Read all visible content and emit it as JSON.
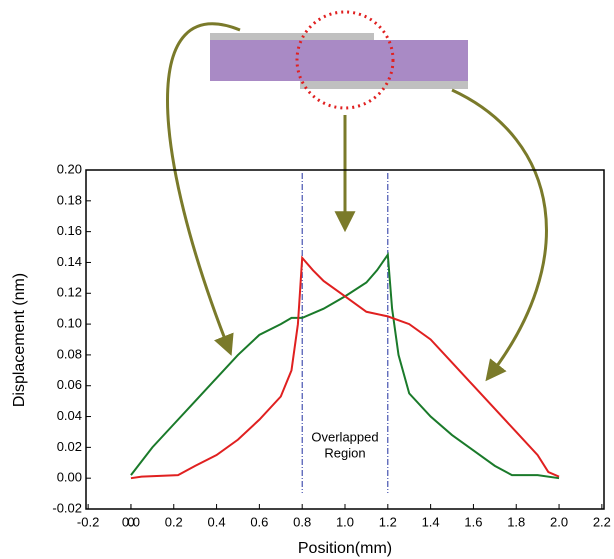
{
  "chart_data": {
    "type": "line",
    "xlabel": "Position(mm)",
    "ylabel": "Displacement (nm)",
    "annotation": [
      "Overlapped",
      "Region"
    ],
    "vlines": [
      0.8,
      1.2
    ],
    "xlim": [
      -0.21,
      2.21
    ],
    "xticks": [
      -0.2,
      0.0,
      {
        "value": 0.0,
        "label": "0.0"
      },
      0.2,
      0.4,
      0.6,
      0.8,
      {
        "value": 1.0,
        "label": "1.0"
      },
      1.2,
      1.4,
      1.6,
      1.8,
      {
        "value": 2.0,
        "label": "2.0"
      },
      2.2
    ],
    "ylim": [
      -0.02,
      0.2
    ],
    "yticks": [
      -0.02,
      {
        "value": 0.0,
        "label": "0.00"
      },
      0.02,
      0.04,
      0.06,
      0.08,
      {
        "value": 0.1,
        "label": "0.10"
      },
      0.12,
      0.14,
      0.16,
      0.18,
      {
        "value": 0.2,
        "label": "0.20"
      }
    ],
    "series": [
      {
        "color": "#1a7a2a",
        "x": [
          0,
          0.1,
          0.2,
          0.3,
          0.4,
          0.5,
          0.6,
          0.7,
          0.75,
          0.8,
          0.9,
          1.0,
          1.1,
          1.15,
          1.2,
          1.22,
          1.25,
          1.3,
          1.4,
          1.5,
          1.6,
          1.7,
          1.78,
          1.9,
          2.0
        ],
        "values": [
          0.002,
          0.02,
          0.035,
          0.05,
          0.065,
          0.08,
          0.093,
          0.1,
          0.104,
          0.104,
          0.11,
          0.118,
          0.127,
          0.135,
          0.145,
          0.11,
          0.08,
          0.055,
          0.04,
          0.028,
          0.018,
          0.008,
          0.002,
          0.002,
          0.0
        ]
      },
      {
        "color": "#e02020",
        "x": [
          0,
          0.05,
          0.22,
          0.3,
          0.4,
          0.5,
          0.6,
          0.7,
          0.75,
          0.78,
          0.8,
          0.85,
          0.9,
          1.0,
          1.1,
          1.2,
          1.3,
          1.4,
          1.5,
          1.6,
          1.7,
          1.8,
          1.9,
          1.95,
          2.0
        ],
        "values": [
          0.0,
          0.001,
          0.002,
          0.008,
          0.015,
          0.025,
          0.038,
          0.053,
          0.07,
          0.1,
          0.143,
          0.135,
          0.128,
          0.118,
          0.108,
          0.105,
          0.1,
          0.09,
          0.075,
          0.06,
          0.045,
          0.03,
          0.015,
          0.004,
          0.001
        ]
      }
    ]
  }
}
